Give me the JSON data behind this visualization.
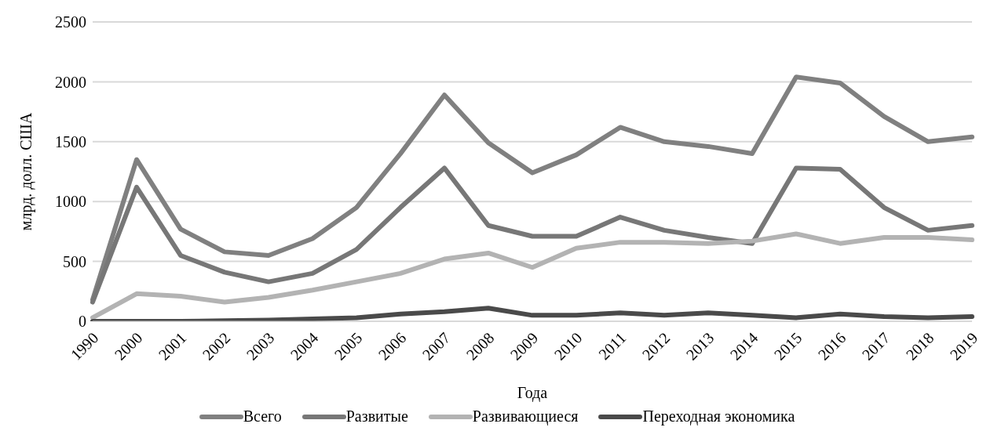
{
  "chart_data": {
    "type": "line",
    "xlabel": "Года",
    "ylabel": "млрд. долл. США",
    "categories": [
      "1990",
      "2000",
      "2001",
      "2002",
      "2003",
      "2004",
      "2005",
      "2006",
      "2007",
      "2008",
      "2009",
      "2010",
      "2011",
      "2012",
      "2013",
      "2014",
      "2015",
      "2016",
      "2017",
      "2018",
      "2019"
    ],
    "series": [
      {
        "name": "Всего",
        "color": "#808080",
        "values": [
          180,
          1350,
          770,
          580,
          550,
          690,
          950,
          1400,
          1890,
          1490,
          1240,
          1390,
          1620,
          1500,
          1460,
          1400,
          2040,
          1990,
          1710,
          1500,
          1540
        ]
      },
      {
        "name": "Развитые",
        "color": "#777777",
        "values": [
          160,
          1120,
          550,
          410,
          330,
          400,
          600,
          950,
          1280,
          800,
          710,
          710,
          870,
          760,
          700,
          650,
          1280,
          1270,
          950,
          760,
          800
        ]
      },
      {
        "name": "Развивающиеся",
        "color": "#b3b3b3",
        "values": [
          30,
          230,
          210,
          160,
          200,
          260,
          330,
          400,
          520,
          570,
          450,
          610,
          660,
          660,
          650,
          670,
          730,
          650,
          700,
          700,
          680
        ]
      },
      {
        "name": "Переходная экономика",
        "color": "#4a4a4a",
        "values": [
          0,
          0,
          0,
          5,
          10,
          20,
          30,
          60,
          80,
          110,
          50,
          50,
          70,
          50,
          70,
          50,
          30,
          60,
          40,
          30,
          40
        ]
      }
    ],
    "ylim": [
      0,
      2500
    ],
    "yticks": [
      0,
      500,
      1000,
      1500,
      2000,
      2500
    ],
    "grid": "y",
    "legend": "bottom",
    "marker": "none",
    "line_style": "solid"
  }
}
